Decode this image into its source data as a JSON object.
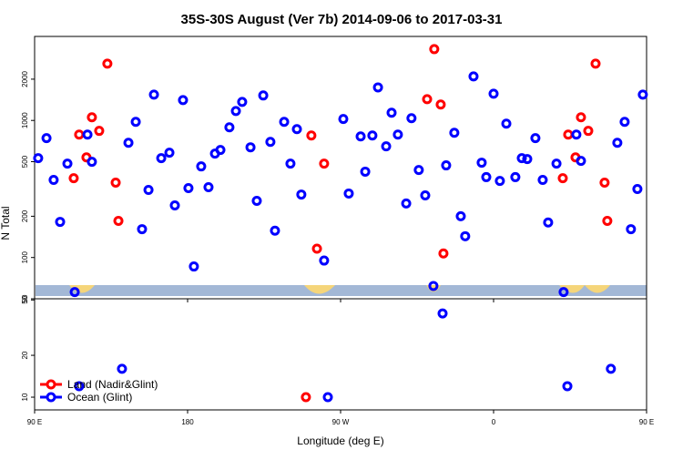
{
  "chart_data": [
    {
      "type": "scatter",
      "title": "35S-30S August (Ver 7b)   2014-09-06 to 2017-03-31",
      "ylabel": "N Total",
      "log_y": true,
      "xlim": [
        90,
        450
      ],
      "ylim": [
        50,
        4100
      ],
      "xticks": [
        {
          "value": 90,
          "label": "90 E"
        },
        {
          "value": 180,
          "label": "180"
        },
        {
          "value": 270,
          "label": "90 W"
        },
        {
          "value": 360,
          "label": "0"
        },
        {
          "value": 450,
          "label": "90 E"
        }
      ],
      "yticks": [
        50,
        100,
        200,
        500,
        1000,
        2000
      ],
      "series": [
        {
          "color": "#ff0000",
          "x": [
            113,
            116.2,
            120.5,
            123.7,
            128,
            132.8,
            137.7,
            139.3,
            252.8,
            256.1,
            260.3,
            320.9,
            325.1,
            328.9,
            330.5,
            400.7,
            403.9,
            408.2,
            411.4,
            415.7,
            420,
            425.3,
            426.9
          ],
          "values": [
            379,
            789,
            538,
            1054,
            839,
            2594,
            352,
            185,
            777,
            116,
            484,
            1429,
            3313,
            1306,
            107,
            379,
            789,
            538,
            1054,
            839,
            2594,
            352,
            185
          ]
        },
        {
          "color": "#0000ff",
          "x": [
            92.1,
            97,
            101.2,
            105,
            109.3,
            113.6,
            121.1,
            123.7,
            145.2,
            149.5,
            153.2,
            157,
            160.2,
            164.5,
            169.3,
            172.5,
            177.3,
            180.5,
            183.7,
            188,
            192.3,
            196.1,
            199.3,
            204.6,
            208.4,
            212.1,
            217,
            220.7,
            224.5,
            228.7,
            231.4,
            236.8,
            240.5,
            244.3,
            246.9,
            260.3,
            271.6,
            274.8,
            281.8,
            284.5,
            288.7,
            292,
            296.8,
            300,
            303.7,
            308.6,
            311.7,
            316,
            319.8,
            324.6,
            332.1,
            336.9,
            340.7,
            343.3,
            348.2,
            353,
            355.7,
            360,
            363.7,
            367.5,
            372.8,
            376.6,
            379.8,
            384.6,
            388.9,
            392.1,
            397,
            401.2,
            408.7,
            411.4,
            432.8,
            437.1,
            440.8,
            444.6,
            447.8
          ],
          "values": [
            531,
            743,
            368,
            182,
            484,
            56,
            789,
            499,
            687,
            977,
            161,
            311,
            1543,
            531,
            582,
            240,
            1408,
            321,
            86,
            462,
            326,
            573,
            609,
            891,
            1172,
            1365,
            637,
            259,
            1521,
            698,
            157,
            977,
            484,
            864,
            288,
            95,
            1024,
            293,
            765,
            423,
            777,
            1742,
            647,
            1138,
            789,
            248,
            1038,
            435,
            284,
            62,
            470,
            813,
            200,
            143,
            2094,
            492,
            386,
            1567,
            362,
            948,
            386,
            531,
            523,
            743,
            368,
            180,
            484,
            56,
            789,
            507,
            687,
            977,
            161,
            316,
            1543
          ]
        }
      ]
    },
    {
      "type": "scatter",
      "xlabel": "Longitude (deg E)",
      "log_y": true,
      "legend": "lower left",
      "xlim": [
        90,
        450
      ],
      "ylim": [
        8.1,
        51
      ],
      "xticks": [
        {
          "value": 90,
          "label": "90 E"
        },
        {
          "value": 180,
          "label": "180"
        },
        {
          "value": 270,
          "label": "90 W"
        },
        {
          "value": 360,
          "label": "0"
        },
        {
          "value": 450,
          "label": "90 E"
        }
      ],
      "yticks": [
        10,
        20,
        50
      ],
      "series": [
        {
          "name": "Land (Nadir&Glint)",
          "color": "#ff0000",
          "x": [
            249.6
          ],
          "values": [
            10
          ]
        },
        {
          "name": "Ocean (Glint)",
          "color": "#0000ff",
          "x": [
            116.2,
            141.4,
            262.5,
            330,
            403.4,
            429
          ],
          "values": [
            12,
            16,
            10,
            40,
            12,
            16
          ]
        }
      ]
    }
  ]
}
